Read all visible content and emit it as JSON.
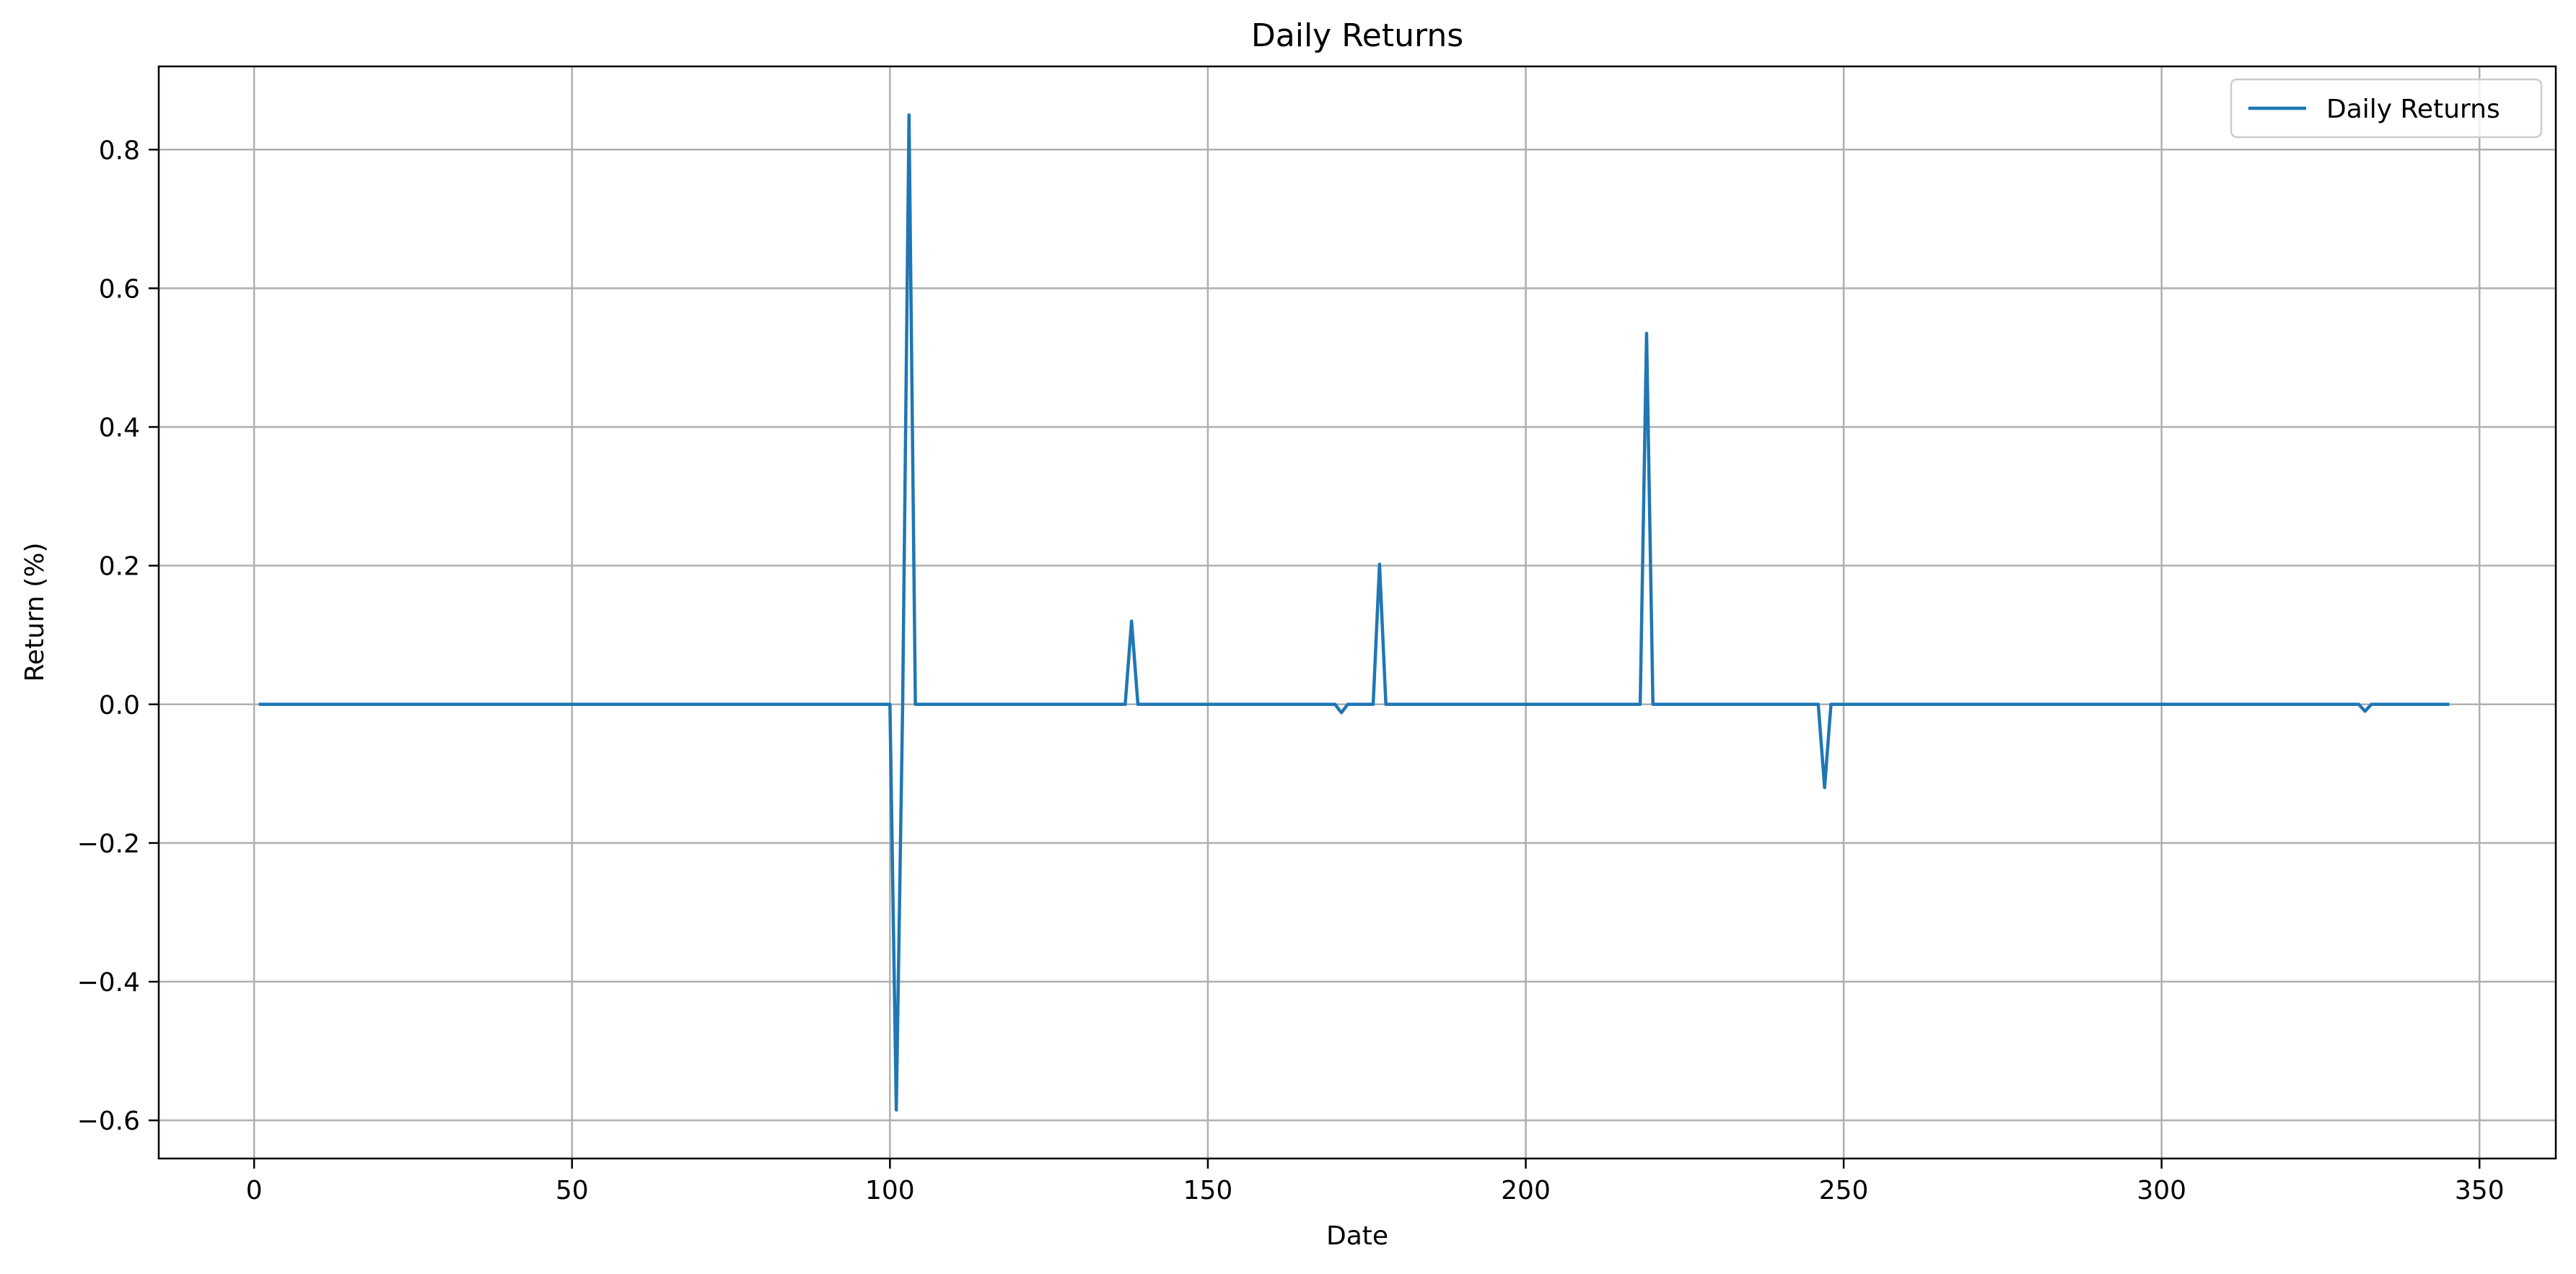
{
  "chart_data": {
    "type": "line",
    "title": "Daily Returns",
    "xlabel": "Date",
    "ylabel": "Return (%)",
    "xlim": [
      -15,
      362
    ],
    "ylim": [
      -0.655,
      0.92
    ],
    "xticks": [
      0,
      50,
      100,
      150,
      200,
      250,
      300,
      350
    ],
    "yticks": [
      -0.6,
      -0.4,
      -0.2,
      0.0,
      0.2,
      0.4,
      0.6,
      0.8
    ],
    "xtick_labels": [
      "0",
      "50",
      "100",
      "150",
      "200",
      "250",
      "300",
      "350"
    ],
    "ytick_labels": [
      "−0.6",
      "−0.4",
      "−0.2",
      "0.0",
      "0.2",
      "0.4",
      "0.6",
      "0.8"
    ],
    "grid": true,
    "legend": {
      "position": "top-right",
      "entries": [
        "Daily Returns"
      ]
    },
    "series": [
      {
        "name": "Daily Returns",
        "color": "#1f77b4",
        "x": [
          1,
          100,
          101,
          102,
          103,
          104,
          137,
          138,
          139,
          170,
          171,
          172,
          176,
          177,
          178,
          218,
          219,
          220,
          246,
          247,
          248,
          331,
          332,
          333,
          345
        ],
        "y": [
          0.0,
          0.0,
          -0.585,
          0.0,
          0.85,
          0.0,
          0.0,
          0.12,
          0.0,
          0.0,
          -0.012,
          0.0,
          0.0,
          0.202,
          0.0,
          0.0,
          0.535,
          0.0,
          0.0,
          -0.12,
          0.0,
          0.0,
          -0.01,
          0.0,
          0.0
        ]
      }
    ]
  }
}
